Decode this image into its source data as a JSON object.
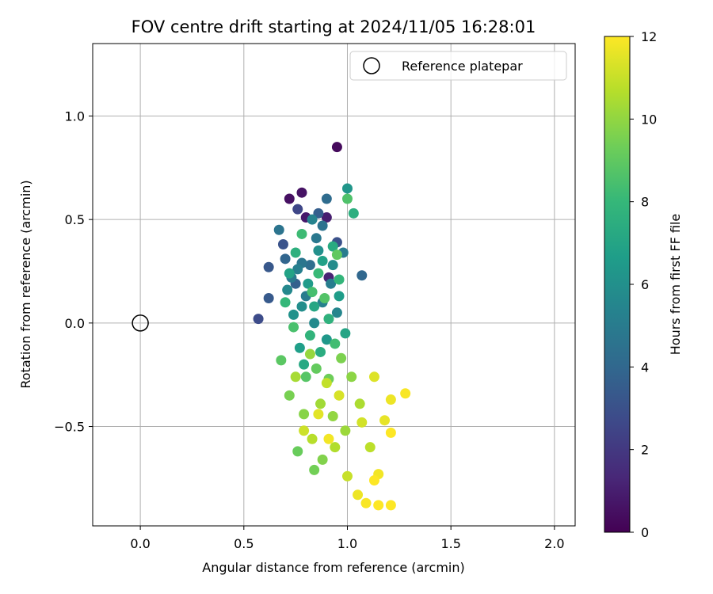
{
  "chart_data": {
    "type": "scatter",
    "title": "FOV centre drift starting at 2024/11/05 16:28:01",
    "xlabel": "Angular distance from reference (arcmin)",
    "ylabel": "Rotation from reference (arcmin)",
    "xlim": [
      -0.23,
      2.1
    ],
    "ylim": [
      -0.98,
      1.35
    ],
    "xticks": [
      "0.0",
      "0.5",
      "1.0",
      "1.5",
      "2.0"
    ],
    "xtick_values": [
      0,
      0.5,
      1.0,
      1.5,
      2.0
    ],
    "yticks": [
      "1.0",
      "0.5",
      "0.0",
      "−0.5"
    ],
    "ytick_values": [
      1.0,
      0.5,
      0.0,
      -0.5
    ],
    "grid": true,
    "legend": {
      "placement": "top-right",
      "label": "Reference platepar"
    },
    "reference_point": {
      "x": 0.0,
      "y": 0.0
    },
    "colorbar": {
      "label": "Hours from first FF file",
      "range": [
        0,
        12
      ],
      "ticks": [
        "0",
        "2",
        "4",
        "6",
        "8",
        "10",
        "12"
      ],
      "tick_values": [
        0,
        2,
        4,
        6,
        8,
        10,
        12
      ],
      "colormap": "viridis"
    },
    "colormap_stops": [
      "#440154",
      "#482878",
      "#3e4989",
      "#31688e",
      "#26828e",
      "#1f9e89",
      "#35b779",
      "#6ece58",
      "#b5de2b",
      "#fde725"
    ],
    "points": [
      {
        "x": 0.95,
        "y": 0.85,
        "hours": 0.3
      },
      {
        "x": 0.72,
        "y": 0.6,
        "hours": 0.5
      },
      {
        "x": 0.78,
        "y": 0.63,
        "hours": 0.6
      },
      {
        "x": 0.8,
        "y": 0.51,
        "hours": 0.8
      },
      {
        "x": 0.9,
        "y": 0.51,
        "hours": 1.0
      },
      {
        "x": 0.91,
        "y": 0.22,
        "hours": 1.2
      },
      {
        "x": 0.76,
        "y": 0.55,
        "hours": 2.6
      },
      {
        "x": 0.57,
        "y": 0.02,
        "hours": 2.8
      },
      {
        "x": 0.95,
        "y": 0.39,
        "hours": 3.0
      },
      {
        "x": 0.69,
        "y": 0.38,
        "hours": 3.1
      },
      {
        "x": 0.62,
        "y": 0.27,
        "hours": 3.3
      },
      {
        "x": 0.62,
        "y": 0.12,
        "hours": 3.4
      },
      {
        "x": 0.86,
        "y": 0.53,
        "hours": 3.6
      },
      {
        "x": 0.75,
        "y": 0.19,
        "hours": 3.7
      },
      {
        "x": 0.7,
        "y": 0.31,
        "hours": 3.9
      },
      {
        "x": 1.07,
        "y": 0.23,
        "hours": 4.0
      },
      {
        "x": 0.9,
        "y": 0.6,
        "hours": 4.2
      },
      {
        "x": 0.82,
        "y": 0.28,
        "hours": 4.3
      },
      {
        "x": 0.88,
        "y": 0.47,
        "hours": 4.5
      },
      {
        "x": 0.67,
        "y": 0.45,
        "hours": 4.6
      },
      {
        "x": 0.78,
        "y": 0.29,
        "hours": 4.7
      },
      {
        "x": 0.85,
        "y": 0.41,
        "hours": 4.8
      },
      {
        "x": 0.73,
        "y": 0.22,
        "hours": 4.9
      },
      {
        "x": 0.98,
        "y": 0.34,
        "hours": 5.0
      },
      {
        "x": 0.8,
        "y": 0.13,
        "hours": 5.0
      },
      {
        "x": 0.92,
        "y": 0.19,
        "hours": 5.1
      },
      {
        "x": 0.76,
        "y": 0.26,
        "hours": 5.2
      },
      {
        "x": 0.88,
        "y": 0.1,
        "hours": 5.3
      },
      {
        "x": 0.83,
        "y": 0.5,
        "hours": 5.4
      },
      {
        "x": 0.95,
        "y": 0.05,
        "hours": 5.5
      },
      {
        "x": 0.71,
        "y": 0.16,
        "hours": 5.6
      },
      {
        "x": 0.84,
        "y": 0.0,
        "hours": 5.7
      },
      {
        "x": 0.93,
        "y": 0.28,
        "hours": 5.8
      },
      {
        "x": 0.78,
        "y": 0.08,
        "hours": 5.9
      },
      {
        "x": 0.86,
        "y": 0.35,
        "hours": 6.0
      },
      {
        "x": 0.74,
        "y": 0.04,
        "hours": 6.1
      },
      {
        "x": 1.0,
        "y": 0.65,
        "hours": 6.3
      },
      {
        "x": 0.9,
        "y": -0.08,
        "hours": 6.4
      },
      {
        "x": 0.81,
        "y": 0.19,
        "hours": 6.5
      },
      {
        "x": 0.96,
        "y": 0.13,
        "hours": 6.6
      },
      {
        "x": 0.77,
        "y": -0.12,
        "hours": 6.7
      },
      {
        "x": 0.88,
        "y": 0.3,
        "hours": 6.8
      },
      {
        "x": 0.72,
        "y": 0.24,
        "hours": 6.9
      },
      {
        "x": 0.99,
        "y": -0.05,
        "hours": 7.0
      },
      {
        "x": 0.84,
        "y": 0.08,
        "hours": 7.1
      },
      {
        "x": 0.79,
        "y": -0.2,
        "hours": 7.2
      },
      {
        "x": 0.93,
        "y": 0.37,
        "hours": 7.3
      },
      {
        "x": 0.87,
        "y": -0.14,
        "hours": 7.4
      },
      {
        "x": 1.03,
        "y": 0.53,
        "hours": 7.5
      },
      {
        "x": 0.75,
        "y": 0.34,
        "hours": 7.6
      },
      {
        "x": 0.91,
        "y": 0.02,
        "hours": 7.7
      },
      {
        "x": 0.82,
        "y": -0.06,
        "hours": 7.8
      },
      {
        "x": 0.96,
        "y": 0.21,
        "hours": 7.9
      },
      {
        "x": 0.7,
        "y": 0.1,
        "hours": 8.0
      },
      {
        "x": 0.86,
        "y": 0.24,
        "hours": 8.1
      },
      {
        "x": 0.78,
        "y": 0.43,
        "hours": 8.2
      },
      {
        "x": 0.94,
        "y": -0.1,
        "hours": 8.3
      },
      {
        "x": 0.83,
        "y": 0.15,
        "hours": 8.4
      },
      {
        "x": 0.74,
        "y": -0.02,
        "hours": 8.5
      },
      {
        "x": 1.0,
        "y": 0.6,
        "hours": 8.6
      },
      {
        "x": 0.89,
        "y": 0.12,
        "hours": 8.7
      },
      {
        "x": 0.8,
        "y": -0.26,
        "hours": 8.8
      },
      {
        "x": 0.68,
        "y": -0.18,
        "hours": 8.9
      },
      {
        "x": 0.95,
        "y": 0.33,
        "hours": 9.0
      },
      {
        "x": 0.85,
        "y": -0.22,
        "hours": 9.1
      },
      {
        "x": 0.76,
        "y": -0.62,
        "hours": 9.2
      },
      {
        "x": 0.91,
        "y": -0.27,
        "hours": 9.3
      },
      {
        "x": 0.84,
        "y": -0.71,
        "hours": 9.4
      },
      {
        "x": 0.72,
        "y": -0.35,
        "hours": 9.5
      },
      {
        "x": 0.97,
        "y": -0.17,
        "hours": 9.6
      },
      {
        "x": 0.88,
        "y": -0.66,
        "hours": 9.7
      },
      {
        "x": 0.79,
        "y": -0.44,
        "hours": 9.8
      },
      {
        "x": 1.02,
        "y": -0.26,
        "hours": 9.9
      },
      {
        "x": 0.93,
        "y": -0.45,
        "hours": 10.0
      },
      {
        "x": 0.82,
        "y": -0.15,
        "hours": 10.1
      },
      {
        "x": 0.99,
        "y": -0.52,
        "hours": 10.2
      },
      {
        "x": 0.87,
        "y": -0.39,
        "hours": 10.3
      },
      {
        "x": 0.75,
        "y": -0.26,
        "hours": 10.4
      },
      {
        "x": 1.06,
        "y": -0.39,
        "hours": 10.5
      },
      {
        "x": 0.94,
        "y": -0.6,
        "hours": 10.6
      },
      {
        "x": 0.83,
        "y": -0.56,
        "hours": 10.7
      },
      {
        "x": 1.11,
        "y": -0.6,
        "hours": 10.8
      },
      {
        "x": 0.9,
        "y": -0.29,
        "hours": 10.9
      },
      {
        "x": 1.0,
        "y": -0.74,
        "hours": 11.0
      },
      {
        "x": 0.79,
        "y": -0.52,
        "hours": 11.1
      },
      {
        "x": 1.07,
        "y": -0.48,
        "hours": 11.2
      },
      {
        "x": 0.96,
        "y": -0.35,
        "hours": 11.3
      },
      {
        "x": 1.13,
        "y": -0.26,
        "hours": 11.4
      },
      {
        "x": 0.86,
        "y": -0.44,
        "hours": 11.5
      },
      {
        "x": 1.18,
        "y": -0.47,
        "hours": 11.6
      },
      {
        "x": 1.05,
        "y": -0.83,
        "hours": 11.7
      },
      {
        "x": 1.21,
        "y": -0.37,
        "hours": 11.7
      },
      {
        "x": 0.91,
        "y": -0.56,
        "hours": 11.8
      },
      {
        "x": 1.15,
        "y": -0.73,
        "hours": 11.8
      },
      {
        "x": 1.09,
        "y": -0.87,
        "hours": 11.9
      },
      {
        "x": 1.28,
        "y": -0.34,
        "hours": 11.9
      },
      {
        "x": 1.21,
        "y": -0.88,
        "hours": 12.0
      },
      {
        "x": 1.15,
        "y": -0.88,
        "hours": 12.0
      },
      {
        "x": 1.21,
        "y": -0.53,
        "hours": 12.0
      },
      {
        "x": 1.13,
        "y": -0.76,
        "hours": 12.0
      }
    ]
  }
}
